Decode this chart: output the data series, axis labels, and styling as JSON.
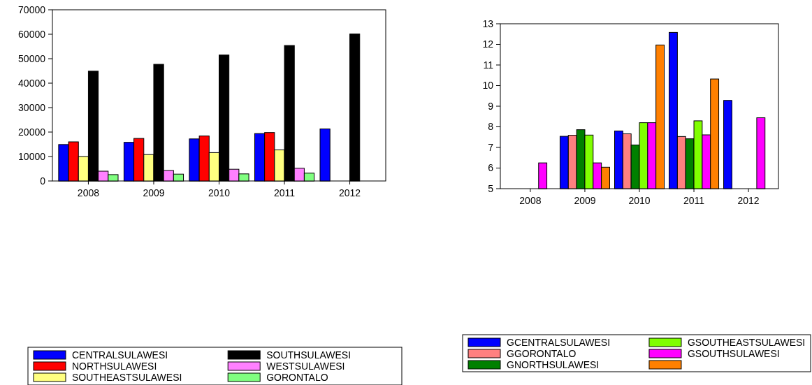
{
  "chart_data": [
    {
      "type": "bar",
      "categories": [
        "2008",
        "2009",
        "2010",
        "2011",
        "2012"
      ],
      "ylim": [
        0,
        70000
      ],
      "yticks": [
        0,
        10000,
        20000,
        30000,
        40000,
        50000,
        60000,
        70000
      ],
      "grid": false,
      "legend": "bottom",
      "series": [
        {
          "name": "CENTRALSULAWESI",
          "color": "#0000ff",
          "values": [
            14900,
            15800,
            17200,
            19400,
            21300
          ]
        },
        {
          "name": "NORTHSULAWESI",
          "color": "#ff0000",
          "values": [
            16000,
            17400,
            18400,
            19800,
            null
          ]
        },
        {
          "name": "SOUTHEASTSULAWESI",
          "color": "#ffff80",
          "values": [
            10000,
            10800,
            11600,
            12700,
            null
          ]
        },
        {
          "name": "SOUTHSULAWESI",
          "color": "#000000",
          "values": [
            44900,
            47700,
            51500,
            55400,
            60100
          ]
        },
        {
          "name": "WESTSULAWESI",
          "color": "#ff80ff",
          "values": [
            4000,
            4300,
            4800,
            5200,
            null
          ]
        },
        {
          "name": "GORONTALO",
          "color": "#80ff80",
          "values": [
            2600,
            2800,
            2900,
            3200,
            null
          ]
        }
      ]
    },
    {
      "type": "bar",
      "categories": [
        "2008",
        "2009",
        "2010",
        "2011",
        "2012"
      ],
      "ylim": [
        5,
        13
      ],
      "yticks": [
        5,
        6,
        7,
        8,
        9,
        10,
        11,
        12,
        13
      ],
      "grid": false,
      "legend": "bottom",
      "series": [
        {
          "name": "GCENTRALSULAWESI",
          "color": "#0000ff",
          "values": [
            null,
            7.54,
            7.8,
            12.58,
            9.28
          ]
        },
        {
          "name": "GGORONTALO",
          "color": "#ff8080",
          "values": [
            null,
            7.59,
            7.66,
            7.53,
            null
          ]
        },
        {
          "name": "GNORTHSULAWESI",
          "color": "#008000",
          "values": [
            null,
            7.86,
            7.12,
            7.42,
            null
          ]
        },
        {
          "name": "GSOUTHEASTSULAWESI",
          "color": "#80ff00",
          "values": [
            null,
            7.6,
            8.2,
            8.29,
            null
          ]
        },
        {
          "name": "GSOUTHSULAWESI",
          "color": "#ff00ff",
          "values": [
            6.25,
            6.25,
            8.2,
            7.61,
            8.44
          ]
        },
        {
          "color": "#ff8000",
          "values": [
            null,
            6.04,
            11.97,
            10.32,
            null
          ]
        }
      ]
    }
  ]
}
